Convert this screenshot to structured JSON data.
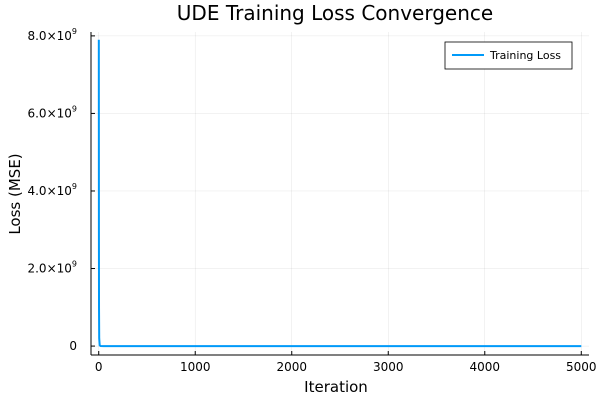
{
  "chart_data": {
    "type": "line",
    "title": "UDE Training Loss Convergence",
    "xlabel": "Iteration",
    "ylabel": "Loss (MSE)",
    "xlim": [
      -80,
      5080
    ],
    "ylim": [
      -230000000.0,
      8100000000.0
    ],
    "x_ticks": [
      0,
      1000,
      2000,
      3000,
      4000,
      5000
    ],
    "x_tick_labels": [
      "0",
      "1000",
      "2000",
      "3000",
      "4000",
      "5000"
    ],
    "y_ticks": [
      {
        "value": 0,
        "base": "0",
        "exp": ""
      },
      {
        "value": 2000000000.0,
        "base": "2.0×10",
        "exp": "9"
      },
      {
        "value": 4000000000.0,
        "base": "4.0×10",
        "exp": "9"
      },
      {
        "value": 6000000000.0,
        "base": "6.0×10",
        "exp": "9"
      },
      {
        "value": 8000000000.0,
        "base": "8.0×10",
        "exp": "9"
      }
    ],
    "grid": true,
    "legend_position": "top-right",
    "series": [
      {
        "name": "Training Loss",
        "color": "#009af9",
        "x": [
          1,
          2,
          3,
          5,
          10,
          20,
          50,
          100,
          500,
          1000,
          2000,
          3000,
          4000,
          5000
        ],
        "y": [
          7900000000.0,
          3000000000.0,
          1000000000.0,
          200000000.0,
          20000000.0,
          1000000.0,
          100000.0,
          10000.0,
          1000,
          500,
          200,
          100,
          80,
          50
        ]
      }
    ]
  }
}
